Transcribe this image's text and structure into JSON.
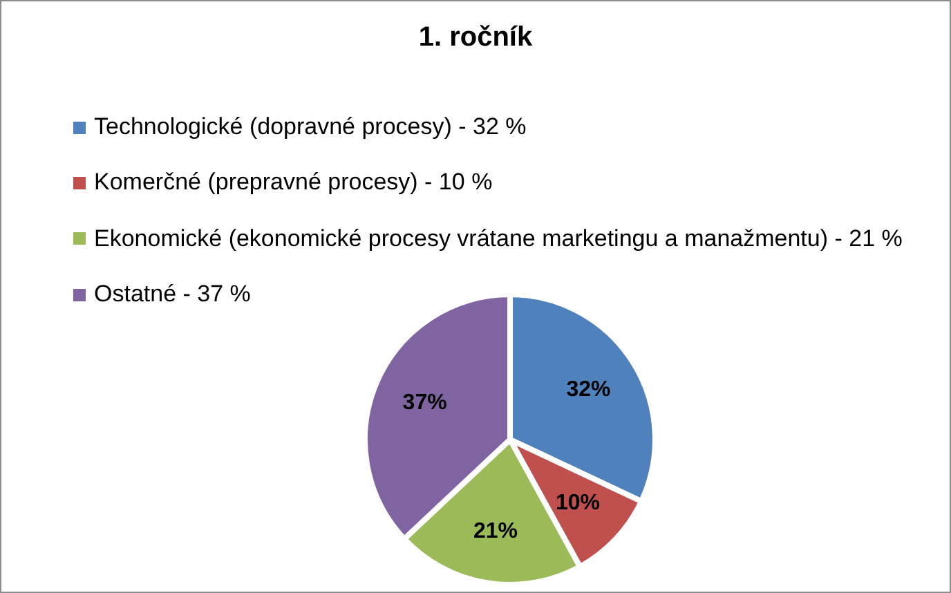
{
  "chart_data": {
    "type": "pie",
    "title": "1. ročník",
    "categories": [
      "Technologické (dopravné procesy) - 32 %",
      "Komerčné (prepravné procesy) - 10 %",
      "Ekonomické (ekonomické procesy vrátane marketingu a manažmentu) - 21 %",
      "Ostatné - 37 %"
    ],
    "values": [
      32,
      10,
      21,
      37
    ],
    "colors": [
      "#4f81bd",
      "#c0504d",
      "#9bbb59",
      "#8064a2"
    ],
    "value_labels": [
      "32%",
      "10%",
      "21%",
      "37%"
    ],
    "legend": "top left"
  }
}
